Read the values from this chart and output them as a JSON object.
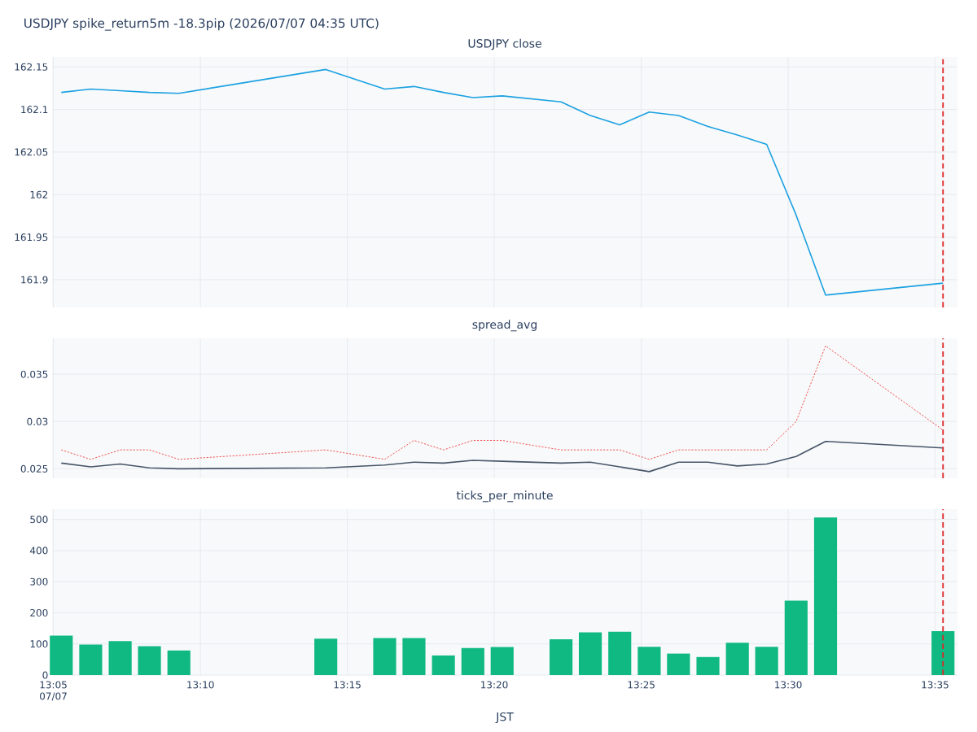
{
  "chart_data": [
    {
      "type": "line",
      "title": "USDJPY spike_return5m -18.3pip (2026/07/07 04:35 UTC)",
      "subtitle": "USDJPY close",
      "x": [
        13.0878,
        13.1045,
        13.1212,
        13.1378,
        13.1545,
        13.2378,
        13.2712,
        13.2878,
        13.3045,
        13.3212,
        13.3378,
        13.3712,
        13.3878,
        13.4045,
        13.4212,
        13.4378,
        13.4545,
        13.4712,
        13.4878,
        13.5045,
        13.5212,
        13.5878
      ],
      "values": [
        162.12,
        162.124,
        162.122,
        162.12,
        162.119,
        162.147,
        162.124,
        162.127,
        162.12,
        162.114,
        162.116,
        162.109,
        162.093,
        162.082,
        162.097,
        162.093,
        162.08,
        162.07,
        162.059,
        161.976,
        161.882,
        161.896
      ],
      "color": "#1ba1e2",
      "line_style": "solid",
      "xlim": [
        13.0826,
        13.596
      ],
      "ylim": [
        161.8675,
        162.1617
      ],
      "xticks": [
        {
          "value": 13.0833,
          "label": null
        },
        {
          "value": 13.1667,
          "label": null
        },
        {
          "value": 13.25,
          "label": null
        },
        {
          "value": 13.3333,
          "label": null
        },
        {
          "value": 13.4167,
          "label": null
        },
        {
          "value": 13.5,
          "label": null
        },
        {
          "value": 13.5833,
          "label": null
        }
      ],
      "yticks": [
        161.9,
        161.95,
        162,
        162.05,
        162.1,
        162.15
      ],
      "tick_labels": "y",
      "grid": true,
      "ref_lines": [
        {
          "axis": "x",
          "value": 13.5878,
          "color": "#dc2626",
          "line_style": "dashed"
        }
      ]
    },
    {
      "type": "line",
      "title": "spread_avg",
      "x": [
        13.0878,
        13.1045,
        13.1212,
        13.1378,
        13.1545,
        13.2378,
        13.2712,
        13.2878,
        13.3045,
        13.3212,
        13.3378,
        13.3712,
        13.3878,
        13.4045,
        13.4212,
        13.4378,
        13.4545,
        13.4712,
        13.4878,
        13.5045,
        13.5212,
        13.5878
      ],
      "series": [
        {
          "color": "#475569",
          "line_style": "solid",
          "values": [
            0.0256,
            0.0252,
            0.0255,
            0.0251,
            0.025,
            0.0251,
            0.0254,
            0.0257,
            0.0256,
            0.0259,
            0.0258,
            0.0256,
            0.0257,
            0.0252,
            0.0247,
            0.0257,
            0.0257,
            0.0253,
            0.0255,
            0.0263,
            0.0279,
            0.0272
          ]
        },
        {
          "color": "#ef4444",
          "line_style": "dotted",
          "values": [
            0.027,
            0.026,
            0.027,
            0.027,
            0.026,
            0.027,
            0.026,
            0.028,
            0.027,
            0.028,
            0.028,
            0.027,
            0.027,
            0.027,
            0.026,
            0.027,
            0.027,
            0.027,
            0.027,
            0.03,
            0.038,
            0.0291
          ]
        }
      ],
      "xlim": [
        13.0826,
        13.596
      ],
      "ylim": [
        0.024,
        0.0388
      ],
      "xticks": [
        {
          "value": 13.0833,
          "label": null
        },
        {
          "value": 13.1667,
          "label": null
        },
        {
          "value": 13.25,
          "label": null
        },
        {
          "value": 13.3333,
          "label": null
        },
        {
          "value": 13.4167,
          "label": null
        },
        {
          "value": 13.5,
          "label": null
        },
        {
          "value": 13.5833,
          "label": null
        }
      ],
      "yticks": [
        0.025,
        0.03,
        0.035
      ],
      "tick_labels": "y",
      "grid": true,
      "ref_lines": [
        {
          "axis": "x",
          "value": 13.5878,
          "color": "#dc2626",
          "line_style": "dashed"
        }
      ]
    },
    {
      "type": "bar",
      "title": "ticks_per_minute",
      "xlabel": "JST",
      "x": [
        13.0878,
        13.1045,
        13.1212,
        13.1378,
        13.1545,
        13.2378,
        13.2712,
        13.2878,
        13.3045,
        13.3212,
        13.3378,
        13.3712,
        13.3878,
        13.4045,
        13.4212,
        13.4378,
        13.4545,
        13.4712,
        13.4878,
        13.5045,
        13.5212,
        13.5878
      ],
      "values": [
        127,
        98,
        109,
        93,
        79,
        117,
        119,
        119,
        63,
        87,
        90,
        115,
        137,
        139,
        91,
        69,
        58,
        104,
        91,
        239,
        506,
        141
      ],
      "color": "#10b981",
      "xlim": [
        13.0826,
        13.596
      ],
      "ylim": [
        0,
        533
      ],
      "xticks": [
        {
          "value": 13.0833,
          "label": "13:05 07/07"
        },
        {
          "value": 13.1667,
          "label": "13:10"
        },
        {
          "value": 13.25,
          "label": "13:15"
        },
        {
          "value": 13.3333,
          "label": "13:20"
        },
        {
          "value": 13.4167,
          "label": "13:25"
        },
        {
          "value": 13.5,
          "label": "13:30"
        },
        {
          "value": 13.5833,
          "label": "13:35"
        }
      ],
      "yticks": [
        0,
        100,
        200,
        300,
        400,
        500
      ],
      "grid": true,
      "ref_lines": [
        {
          "axis": "x",
          "value": 13.5878,
          "color": "#dc2626",
          "line_style": "dashed"
        }
      ]
    }
  ]
}
